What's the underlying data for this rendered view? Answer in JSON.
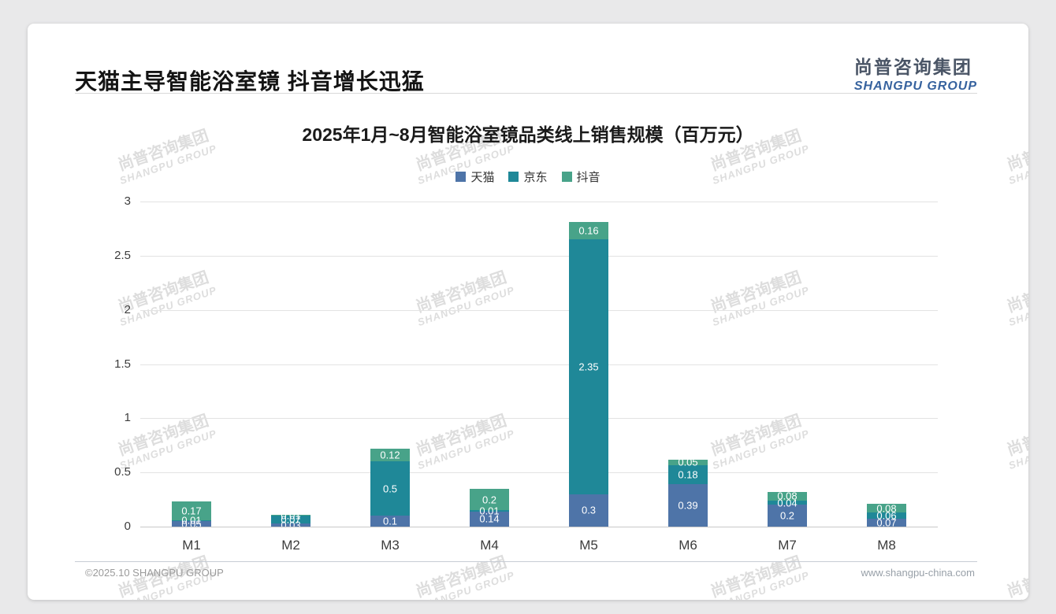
{
  "header": {
    "title": "天猫主导智能浴室镜 抖音增长迅猛",
    "logo": {
      "cn": "尚普咨询集团",
      "en": "SHANGPU GROUP"
    }
  },
  "watermark": {
    "line1": "尚普咨询集团",
    "line2": "SHANGPU GROUP"
  },
  "footer": {
    "copyright": "©2025.10 SHANGPU GROUP",
    "website": "www.shangpu-china.com"
  },
  "chart_data": {
    "type": "bar",
    "stacked": true,
    "title": "2025年1月~8月智能浴室镜品类线上销售规模（百万元）",
    "categories": [
      "M1",
      "M2",
      "M3",
      "M4",
      "M5",
      "M6",
      "M7",
      "M8"
    ],
    "series": [
      {
        "name": "天猫",
        "color": "#4e74a8",
        "values": [
          0.05,
          0.03,
          0.1,
          0.14,
          0.3,
          0.39,
          0.2,
          0.07
        ]
      },
      {
        "name": "京东",
        "color": "#1f8898",
        "values": [
          0.01,
          0.07,
          0.5,
          0.01,
          2.35,
          0.18,
          0.04,
          0.06
        ]
      },
      {
        "name": "抖音",
        "color": "#48a389",
        "values": [
          0.17,
          0.01,
          0.12,
          0.2,
          0.16,
          0.05,
          0.08,
          0.08
        ]
      }
    ],
    "y_ticks": [
      3,
      2.5,
      2,
      1.5,
      1,
      0.5,
      0
    ],
    "ylim": [
      0,
      3
    ],
    "grid": true,
    "legend_position": "top-center"
  }
}
